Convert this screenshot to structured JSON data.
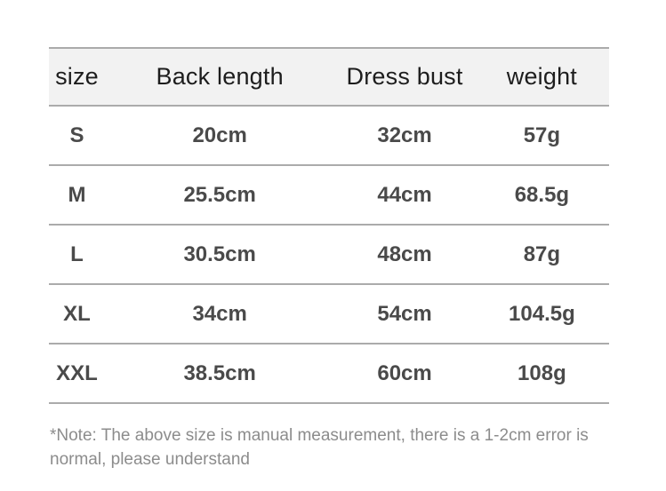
{
  "colors": {
    "page_bg": "#ffffff",
    "header_bg": "#f2f2f2",
    "row_border": "#ababab",
    "header_text": "#1d1d1d",
    "cell_text": "#4a4a4a",
    "note_text": "#8c8c8c"
  },
  "table": {
    "headers": [
      "size",
      "Back length",
      "Dress bust",
      "weight"
    ],
    "rows": [
      [
        "S",
        "20cm",
        "32cm",
        "57g"
      ],
      [
        "M",
        "25.5cm",
        "44cm",
        "68.5g"
      ],
      [
        "L",
        "30.5cm",
        "48cm",
        "87g"
      ],
      [
        "XL",
        "34cm",
        "54cm",
        "104.5g"
      ],
      [
        "XXL",
        "38.5cm",
        "60cm",
        "108g"
      ]
    ]
  },
  "note": {
    "text": "*Note: The above size is manual measurement, there is a 1-2cm error is normal, please understand"
  }
}
